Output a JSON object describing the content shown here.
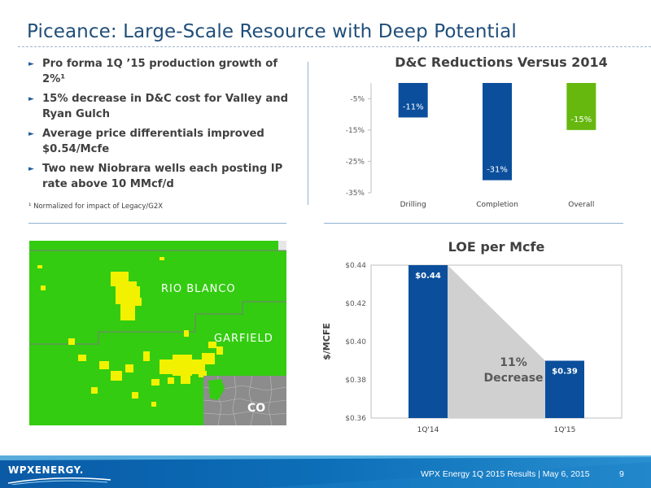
{
  "slide": {
    "title": "Piceance: Large-Scale Resource with Deep Potential",
    "bullets": [
      "Pro forma 1Q ’15 production growth of 2%¹",
      "15% decrease in D&C cost for Valley and Ryan Gulch",
      "Average price differentials improved $0.54/Mcfe",
      "Two new Niobrara wells each posting IP rate above 10 MMcf/d"
    ],
    "bullet_marker": "►",
    "footnote": "¹ Normalized for impact of Legacy/G2X"
  },
  "map": {
    "labels": {
      "county_north": "RIO BLANCO",
      "county_south": "GARFIELD",
      "state": "CO"
    },
    "colors": {
      "land": "#33cc11",
      "acreage": "#f2f200",
      "border": "#8a8a8a"
    }
  },
  "chart_data": [
    {
      "type": "bar",
      "title": "D&C Reductions Versus 2014",
      "categories": [
        "Drilling",
        "Completion",
        "Overall"
      ],
      "values": [
        -11,
        -31,
        -15
      ],
      "value_labels": [
        "-11%",
        "-31%",
        "-15%"
      ],
      "colors": [
        "#0b4f9c",
        "#0b4f9c",
        "#66b80f"
      ],
      "yticks": [
        "-5%",
        "-15%",
        "-25%",
        "-35%"
      ],
      "ylim": [
        -35,
        0
      ],
      "grid": false
    },
    {
      "type": "bar",
      "title": "LOE per Mcfe",
      "ylabel": "$/MCFE",
      "categories": [
        "1Q'14",
        "1Q'15"
      ],
      "values": [
        0.44,
        0.39
      ],
      "value_labels": [
        "$0.44",
        "$0.39"
      ],
      "colors": [
        "#0b4f9c",
        "#0b4f9c"
      ],
      "yticks": [
        "$0.44",
        "$0.42",
        "$0.40",
        "$0.38",
        "$0.36"
      ],
      "ylim": [
        0.36,
        0.44
      ],
      "annotation": "11% Decrease",
      "grid": false
    }
  ],
  "footer": {
    "logo_text": "WPXENERGY.",
    "text": "WPX Energy 1Q 2015 Results  |  May 6, 2015",
    "page": "9",
    "colors": {
      "band": "#0c6fb8",
      "accent": "#6cc0ea"
    }
  }
}
